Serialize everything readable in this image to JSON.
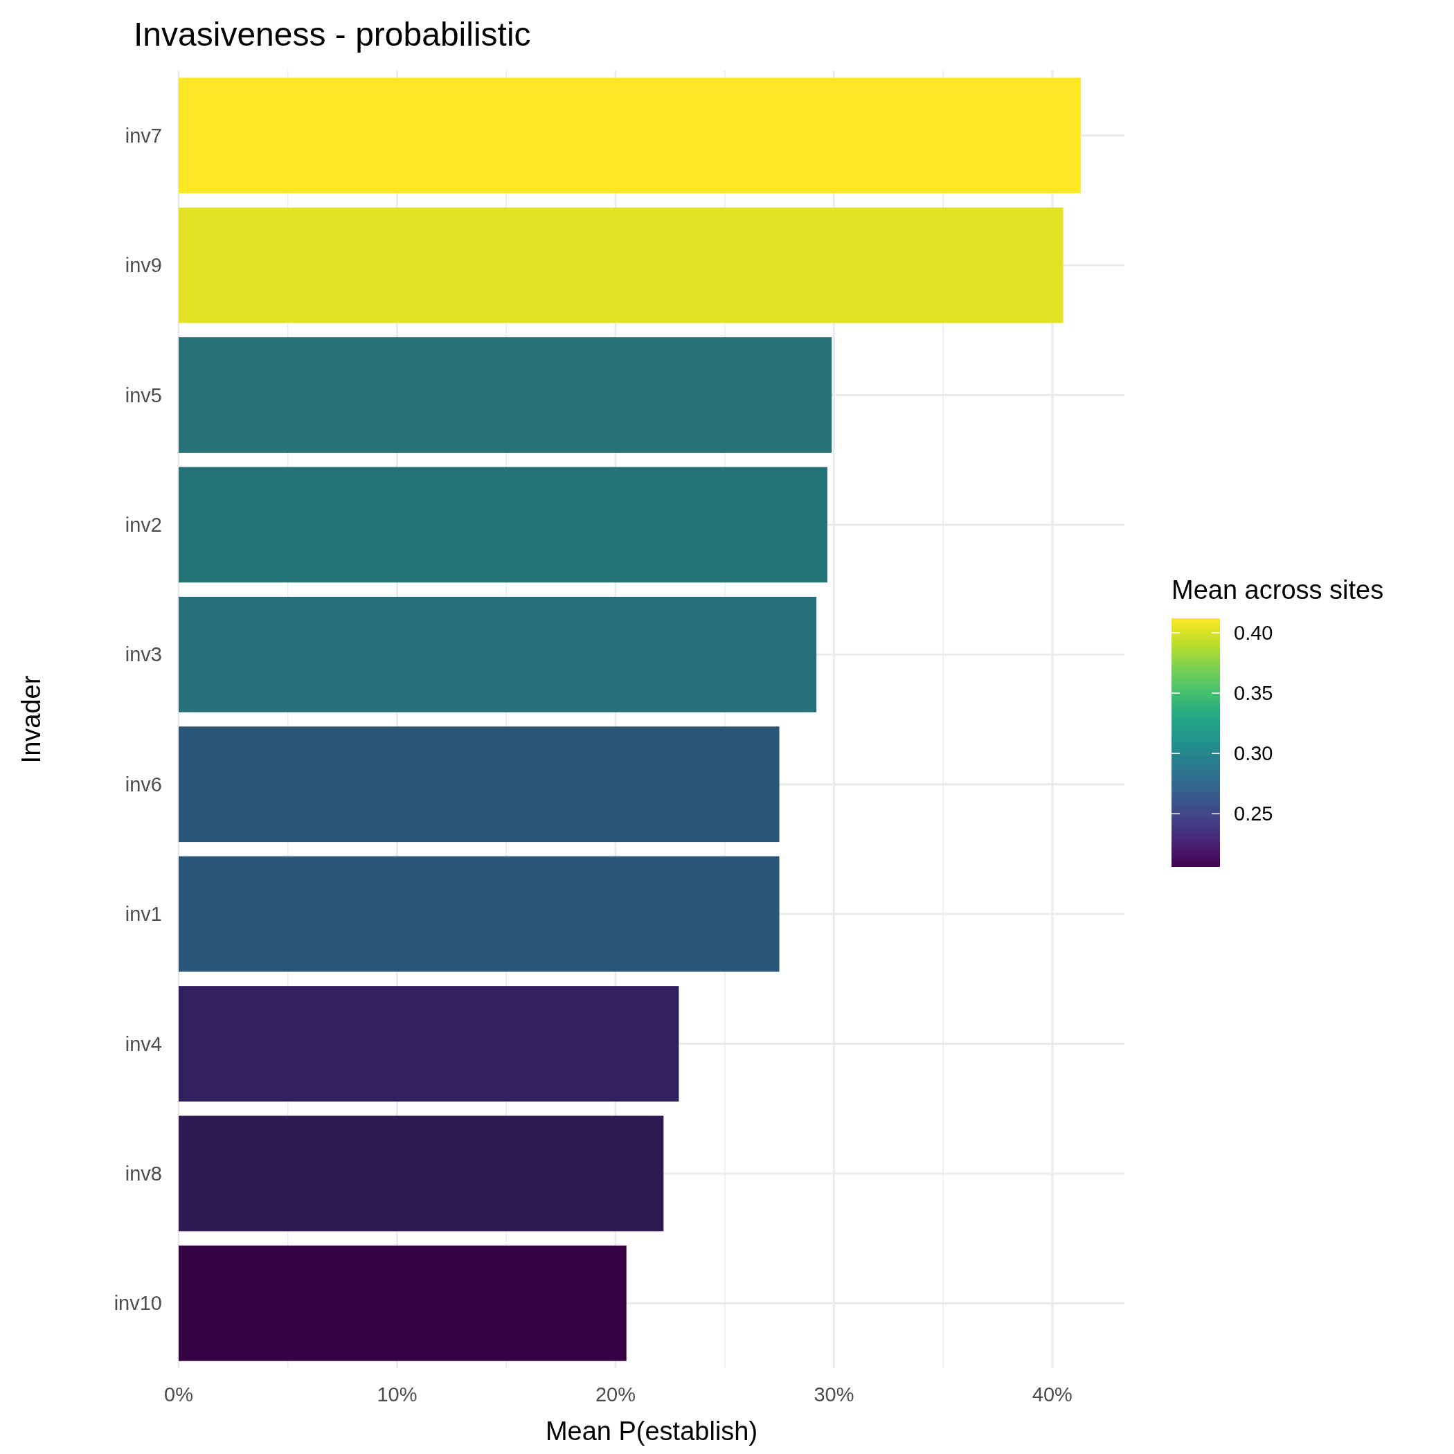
{
  "chart_data": {
    "type": "bar",
    "orientation": "horizontal",
    "title": "Invasiveness - probabilistic",
    "xlabel": "Mean P(establish)",
    "ylabel": "Invader",
    "clabel": "Mean across sites",
    "categories": [
      "inv7",
      "inv9",
      "inv5",
      "inv2",
      "inv3",
      "inv6",
      "inv1",
      "inv4",
      "inv8",
      "inv10"
    ],
    "values": [
      41.3,
      40.5,
      29.9,
      29.7,
      29.2,
      27.5,
      27.5,
      22.9,
      22.2,
      20.5
    ],
    "colors": [
      "#fde725",
      "#e2e123",
      "#277277",
      "#267377",
      "#26707a",
      "#2a567a",
      "#2a567a",
      "#32205e",
      "#2f1a55",
      "#340042"
    ],
    "xlim": [
      0,
      43.3
    ],
    "xticks": [
      {
        "value": 0,
        "label": "0%"
      },
      {
        "value": 5,
        "label": null
      },
      {
        "value": 10,
        "label": "10%"
      },
      {
        "value": 15,
        "label": null
      },
      {
        "value": 20,
        "label": "20%"
      },
      {
        "value": 25,
        "label": null
      },
      {
        "value": 30,
        "label": "30%"
      },
      {
        "value": 35,
        "label": null
      },
      {
        "value": 40,
        "label": "40%"
      }
    ],
    "clim": [
      0.206,
      0.412
    ],
    "cticks": [
      0.25,
      {
        "value": 0.3,
        "label": "0.30"
      },
      0.35,
      {
        "value": 0.4,
        "label": "0.40"
      }
    ],
    "grid": true
  }
}
